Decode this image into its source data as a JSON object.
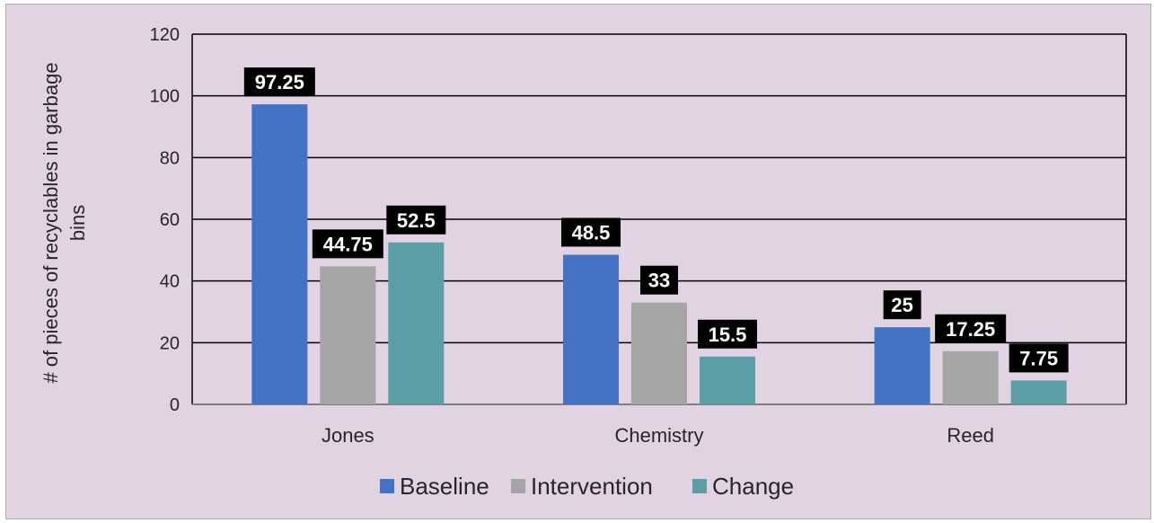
{
  "chart_data": {
    "type": "bar",
    "categories": [
      "Jones",
      "Chemistry",
      "Reed"
    ],
    "series": [
      {
        "name": "Baseline",
        "values": [
          97.25,
          48.5,
          25
        ],
        "color": "#4472c4"
      },
      {
        "name": "Intervention",
        "values": [
          44.75,
          33,
          17.25
        ],
        "color": "#a5a5a5"
      },
      {
        "name": "Change",
        "values": [
          52.5,
          15.5,
          7.75
        ],
        "color": "#5b9ea6"
      }
    ],
    "data_labels": [
      [
        "97.25",
        "48.5",
        "25"
      ],
      [
        "44.75",
        "33",
        "17.25"
      ],
      [
        "52.5",
        "15.5",
        "7.75"
      ]
    ],
    "ylabel_lines": [
      "# of pieces of recyclables in garbage",
      "bins"
    ],
    "yticks": [
      0,
      20,
      40,
      60,
      80,
      100,
      120
    ],
    "ylim": [
      0,
      120
    ],
    "grid": true,
    "legend_position": "bottom",
    "background": "#e2d3e2",
    "label_box_color": "#000000"
  }
}
